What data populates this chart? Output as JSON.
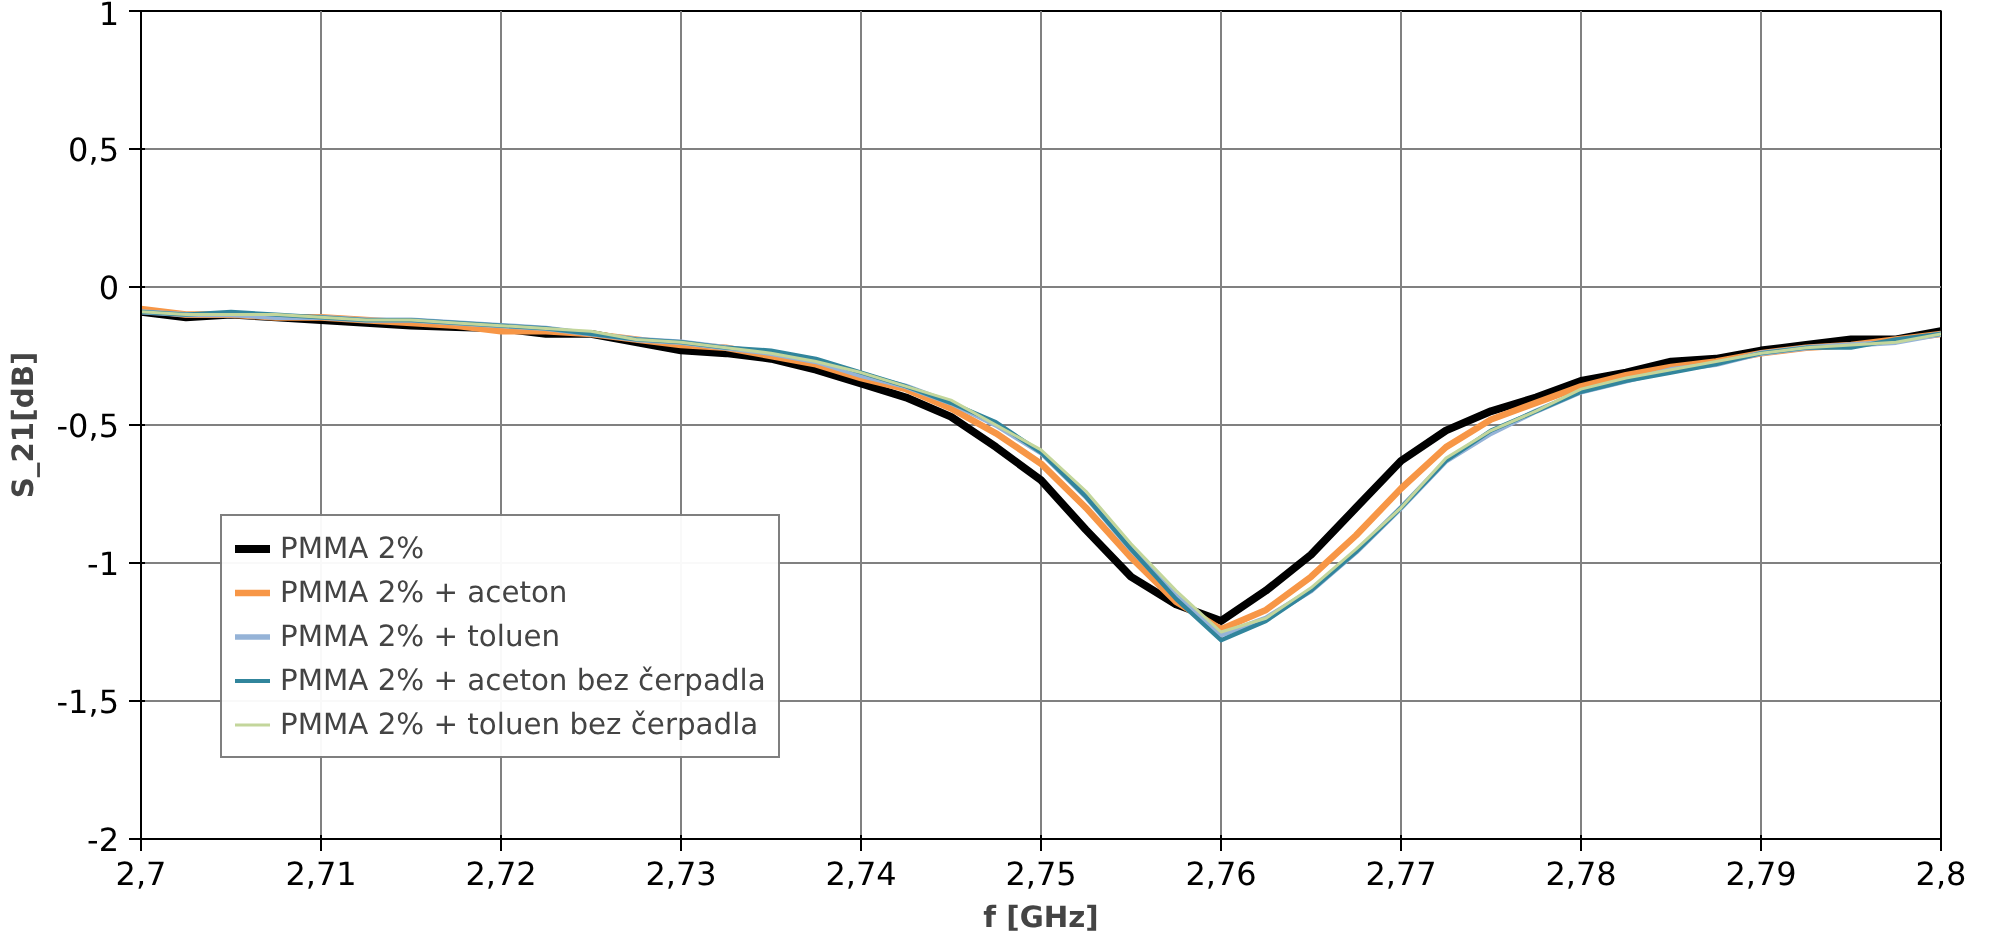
{
  "chart_data": {
    "type": "line",
    "xlabel": "f [GHz]",
    "ylabel": "S_21[dB]",
    "x": [
      2.7,
      2.7025,
      2.705,
      2.7075,
      2.71,
      2.7125,
      2.715,
      2.7175,
      2.72,
      2.7225,
      2.725,
      2.7275,
      2.73,
      2.7325,
      2.735,
      2.7375,
      2.74,
      2.7425,
      2.745,
      2.7475,
      2.75,
      2.7525,
      2.755,
      2.7575,
      2.76,
      2.7625,
      2.765,
      2.7675,
      2.77,
      2.7725,
      2.775,
      2.7775,
      2.78,
      2.7825,
      2.785,
      2.7875,
      2.79,
      2.7925,
      2.795,
      2.7975,
      2.8
    ],
    "series": [
      {
        "name": "PMMA 2%",
        "color": "#000000",
        "values": [
          -0.09,
          -0.11,
          -0.1,
          -0.11,
          -0.12,
          -0.13,
          -0.14,
          -0.145,
          -0.15,
          -0.17,
          -0.17,
          -0.2,
          -0.23,
          -0.24,
          -0.26,
          -0.3,
          -0.35,
          -0.4,
          -0.47,
          -0.58,
          -0.7,
          -0.88,
          -1.05,
          -1.15,
          -1.21,
          -1.1,
          -0.97,
          -0.8,
          -0.63,
          -0.52,
          -0.45,
          -0.4,
          -0.34,
          -0.31,
          -0.27,
          -0.26,
          -0.23,
          -0.21,
          -0.19,
          -0.19,
          -0.16
        ]
      },
      {
        "name": "PMMA 2% + aceton",
        "color": "#f79646",
        "values": [
          -0.08,
          -0.1,
          -0.1,
          -0.11,
          -0.11,
          -0.12,
          -0.13,
          -0.14,
          -0.16,
          -0.16,
          -0.17,
          -0.19,
          -0.21,
          -0.22,
          -0.25,
          -0.28,
          -0.33,
          -0.37,
          -0.44,
          -0.53,
          -0.64,
          -0.8,
          -0.98,
          -1.14,
          -1.24,
          -1.17,
          -1.05,
          -0.9,
          -0.73,
          -0.58,
          -0.48,
          -0.42,
          -0.36,
          -0.32,
          -0.29,
          -0.27,
          -0.24,
          -0.22,
          -0.21,
          -0.19,
          -0.17
        ]
      },
      {
        "name": "PMMA 2% + toluen",
        "color": "#95b3d7",
        "values": [
          -0.09,
          -0.1,
          -0.1,
          -0.11,
          -0.11,
          -0.12,
          -0.12,
          -0.13,
          -0.14,
          -0.15,
          -0.17,
          -0.19,
          -0.2,
          -0.22,
          -0.24,
          -0.27,
          -0.32,
          -0.36,
          -0.42,
          -0.5,
          -0.6,
          -0.76,
          -0.95,
          -1.12,
          -1.26,
          -1.2,
          -1.1,
          -0.96,
          -0.8,
          -0.63,
          -0.53,
          -0.45,
          -0.38,
          -0.34,
          -0.3,
          -0.28,
          -0.24,
          -0.22,
          -0.21,
          -0.2,
          -0.17
        ]
      },
      {
        "name": "PMMA 2% + aceton bez čerpadla",
        "color": "#31859c",
        "values": [
          -0.09,
          -0.1,
          -0.09,
          -0.1,
          -0.11,
          -0.12,
          -0.12,
          -0.13,
          -0.14,
          -0.15,
          -0.17,
          -0.19,
          -0.2,
          -0.22,
          -0.23,
          -0.26,
          -0.31,
          -0.36,
          -0.42,
          -0.49,
          -0.6,
          -0.76,
          -0.95,
          -1.13,
          -1.28,
          -1.21,
          -1.1,
          -0.96,
          -0.8,
          -0.63,
          -0.52,
          -0.45,
          -0.38,
          -0.34,
          -0.31,
          -0.28,
          -0.24,
          -0.22,
          -0.22,
          -0.19,
          -0.17
        ]
      },
      {
        "name": "PMMA 2% + toluen bez čerpadla",
        "color": "#c3d69b",
        "values": [
          -0.09,
          -0.1,
          -0.1,
          -0.1,
          -0.11,
          -0.12,
          -0.12,
          -0.13,
          -0.14,
          -0.15,
          -0.16,
          -0.19,
          -0.2,
          -0.22,
          -0.24,
          -0.27,
          -0.31,
          -0.36,
          -0.41,
          -0.5,
          -0.59,
          -0.74,
          -0.93,
          -1.1,
          -1.25,
          -1.2,
          -1.09,
          -0.95,
          -0.8,
          -0.62,
          -0.52,
          -0.45,
          -0.37,
          -0.33,
          -0.3,
          -0.27,
          -0.24,
          -0.22,
          -0.21,
          -0.2,
          -0.17
        ]
      }
    ],
    "xlim": [
      2.7,
      2.8
    ],
    "ylim": [
      -2,
      1
    ],
    "xticks": [
      {
        "value": 2.7,
        "label": "2,7"
      },
      {
        "value": 2.71,
        "label": "2,71"
      },
      {
        "value": 2.72,
        "label": "2,72"
      },
      {
        "value": 2.73,
        "label": "2,73"
      },
      {
        "value": 2.74,
        "label": "2,74"
      },
      {
        "value": 2.75,
        "label": "2,75"
      },
      {
        "value": 2.76,
        "label": "2,76"
      },
      {
        "value": 2.77,
        "label": "2,77"
      },
      {
        "value": 2.78,
        "label": "2,78"
      },
      {
        "value": 2.79,
        "label": "2,79"
      },
      {
        "value": 2.8,
        "label": "2,8"
      }
    ],
    "yticks": [
      -2,
      {
        "value": -1.5,
        "label": "-1,5"
      },
      -1,
      {
        "value": -0.5,
        "label": "-0,5"
      },
      0,
      {
        "value": 0.5,
        "label": "0,5"
      },
      1
    ],
    "grid": true,
    "legend": "bottom left",
    "line_style": "solid"
  }
}
